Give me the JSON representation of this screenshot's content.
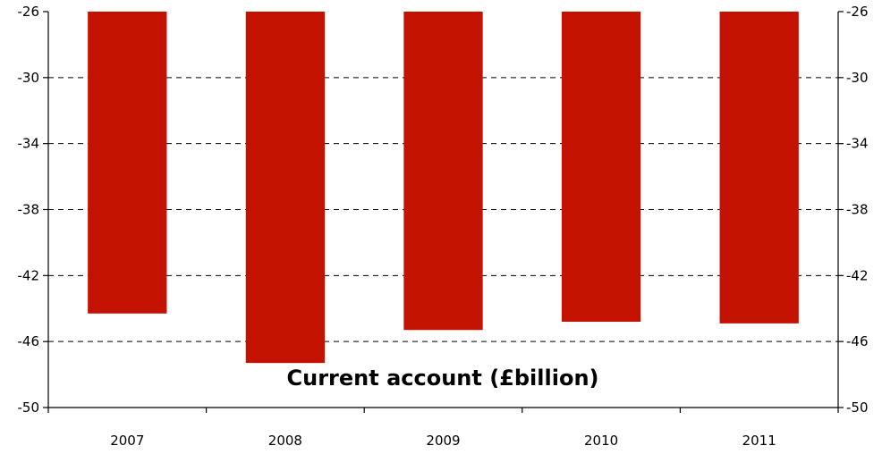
{
  "chart_data": {
    "type": "bar",
    "title": "Current account (£billion)",
    "categories": [
      "2007",
      "2008",
      "2009",
      "2010",
      "2011"
    ],
    "values": [
      -44.3,
      -47.3,
      -45.3,
      -44.8,
      -44.9
    ],
    "ylim": [
      -50,
      -26
    ],
    "yticks": [
      -26,
      -30,
      -34,
      -38,
      -42,
      -46,
      -50
    ],
    "xlabel": "",
    "ylabel": "",
    "grid": true,
    "bar_color": "#c41200",
    "secondary_y_axis": true
  }
}
